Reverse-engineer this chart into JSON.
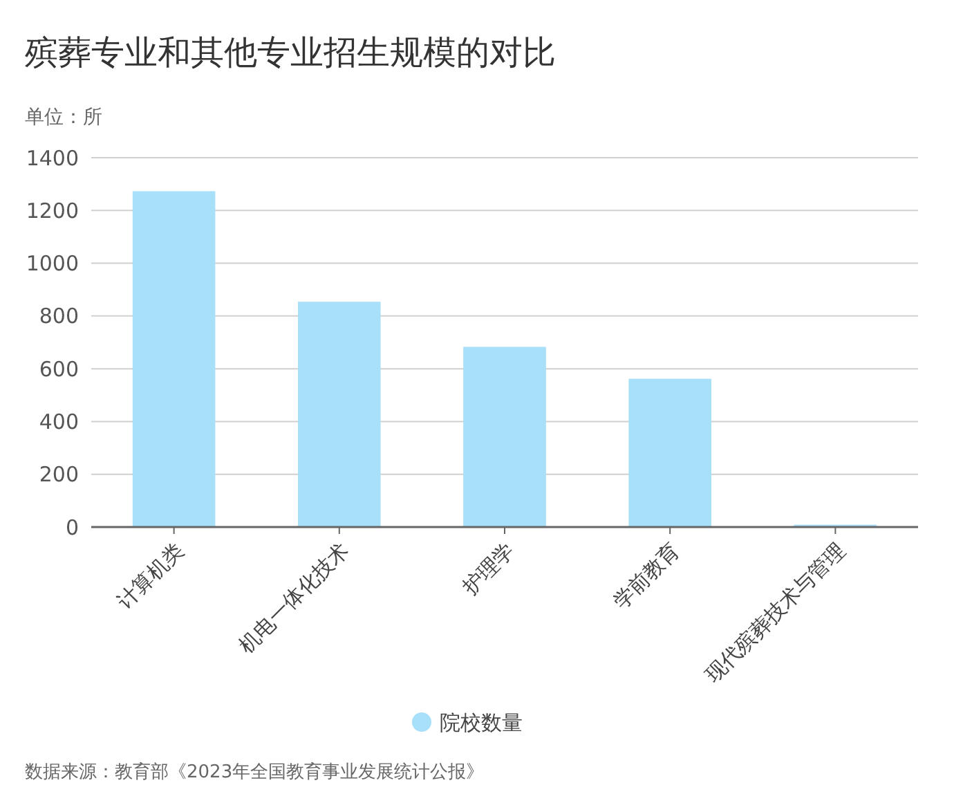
{
  "chart_data": {
    "type": "bar",
    "title": "殡葬专业和其他专业招生规模的对比",
    "ylabel": "单位：所",
    "categories": [
      "计算机类",
      "机电一体化技术",
      "护理学",
      "学前教育",
      "现代殡葬技术与管理"
    ],
    "series": [
      {
        "name": "院校数量",
        "color": "#a8dff9",
        "values": [
          1273,
          854,
          683,
          562,
          9
        ]
      }
    ],
    "ylim": [
      0,
      1400
    ],
    "yticks": [
      0,
      200,
      400,
      600,
      800,
      1000,
      1200,
      1400
    ],
    "grid": "y",
    "legend": "bottom",
    "annotations": [
      "数据来源：教育部《2023年全国教育事业发展统计公报》"
    ]
  }
}
